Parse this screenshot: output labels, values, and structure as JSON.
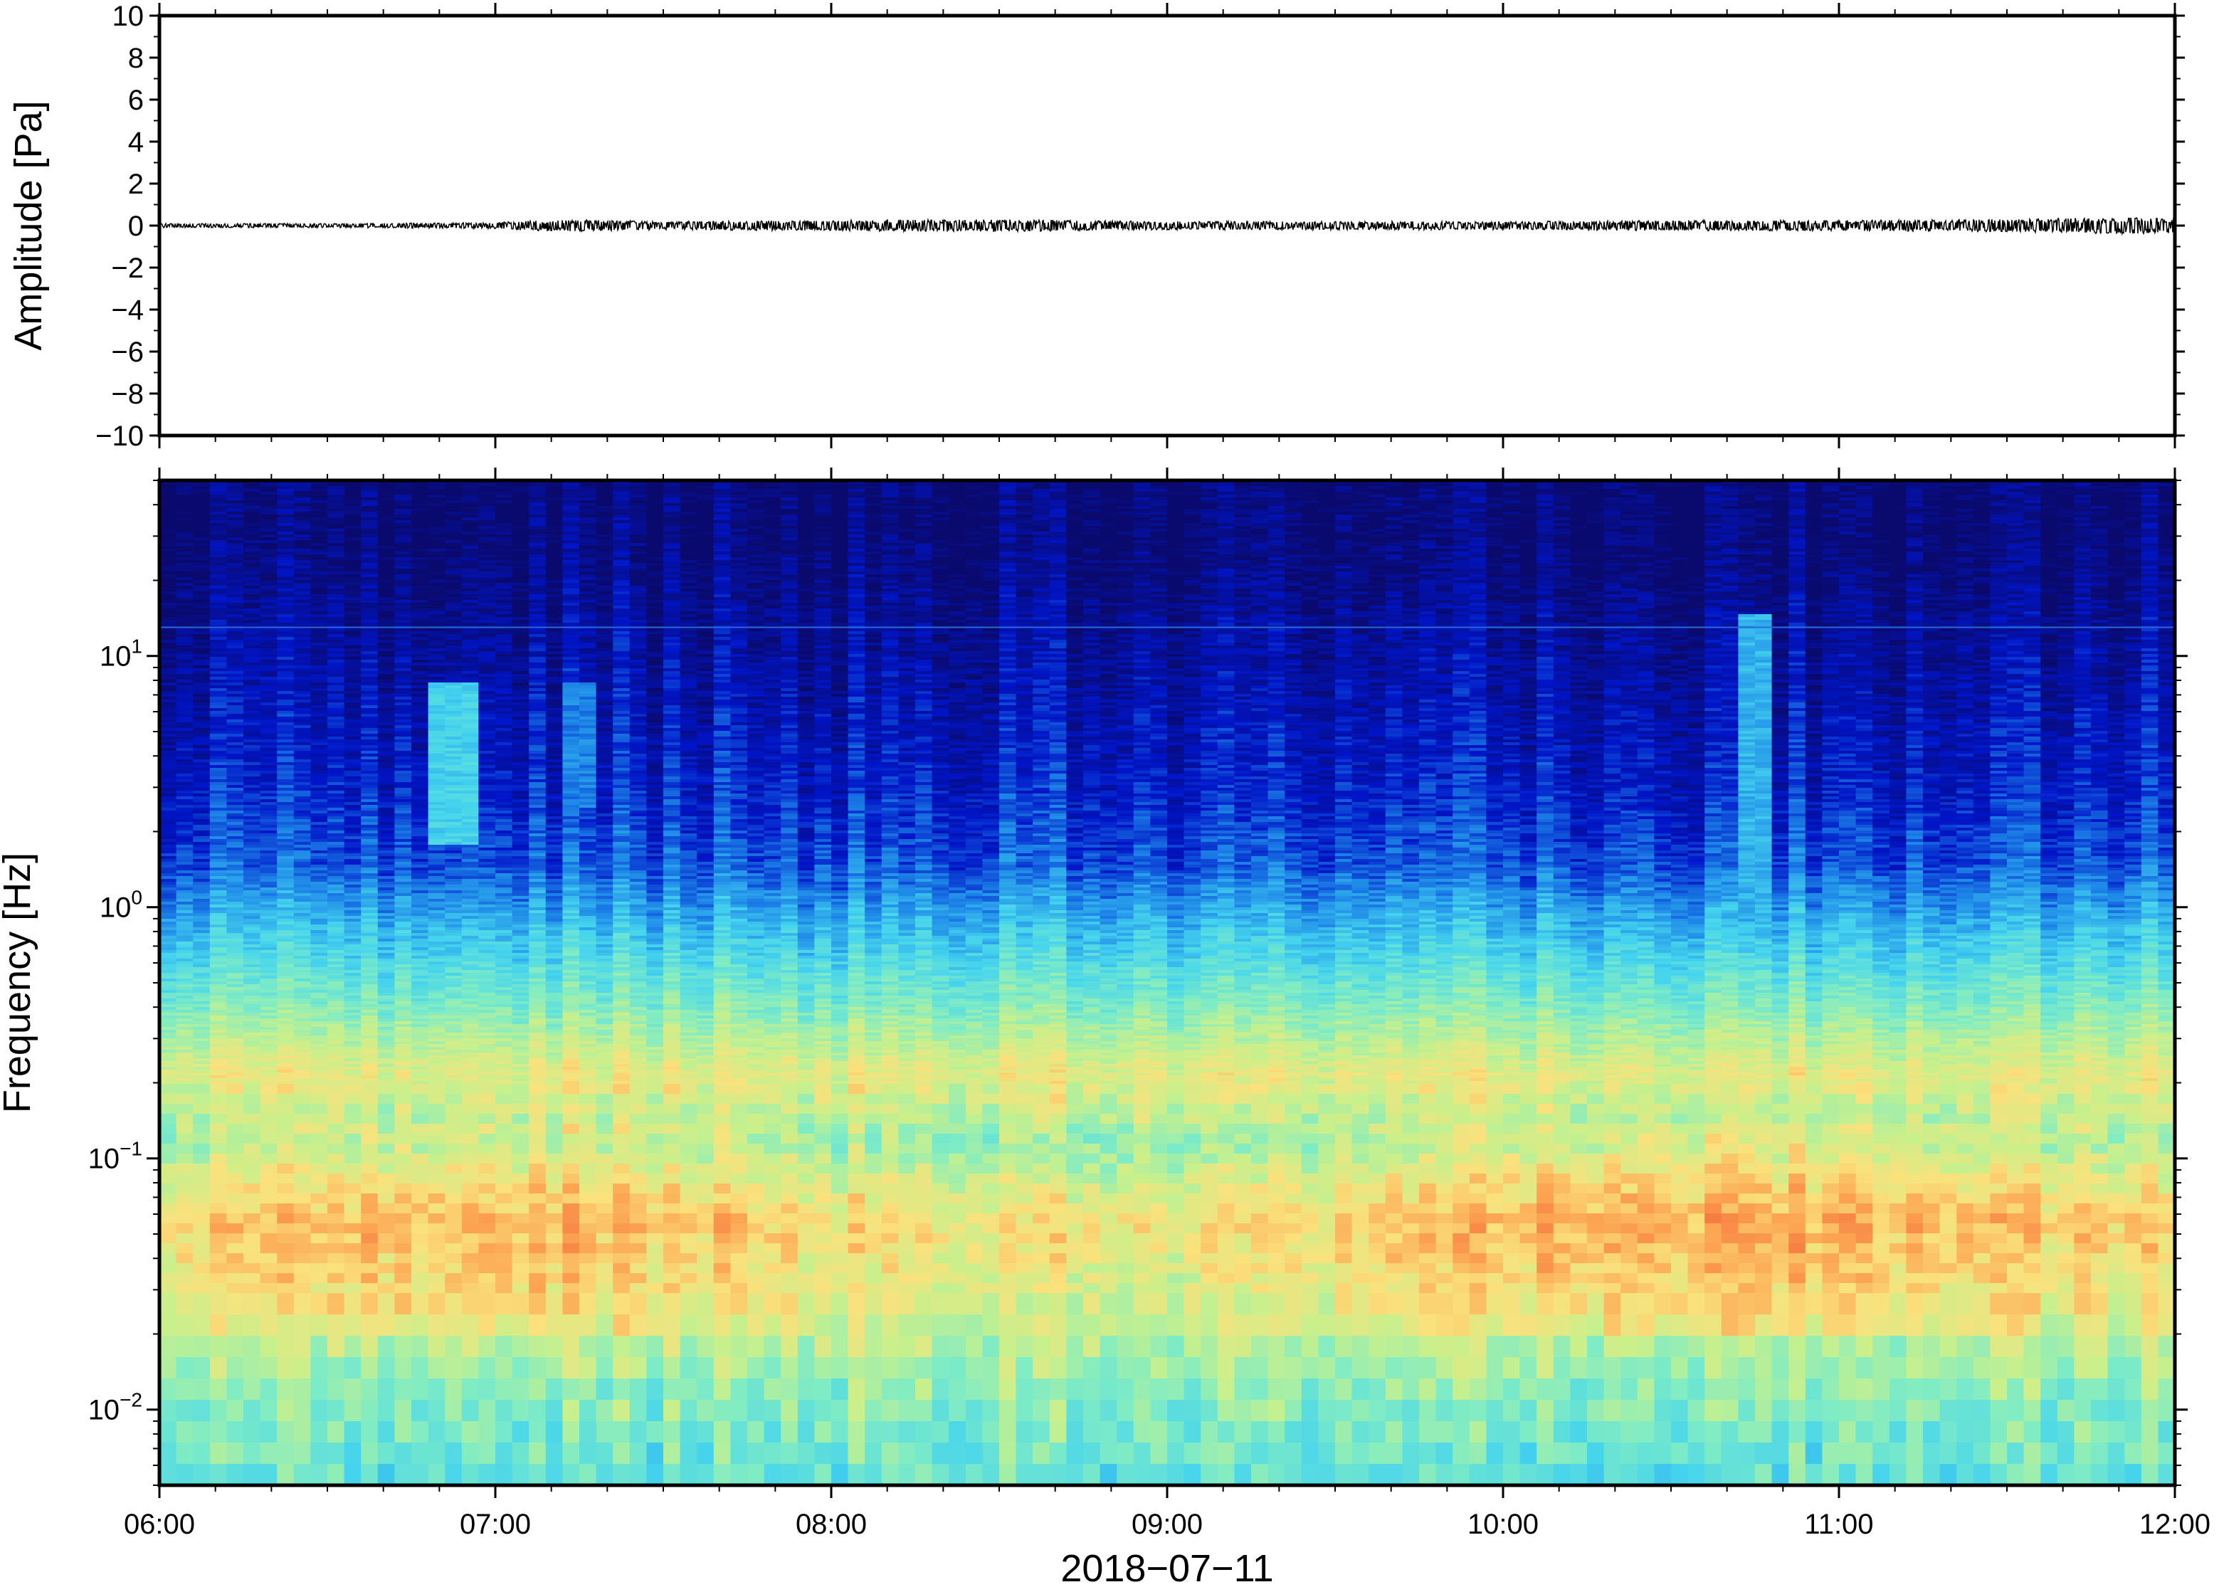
{
  "chart_data": [
    {
      "type": "line",
      "ylabel": "Amplitude [Pa]",
      "ylim": [
        -10,
        10
      ],
      "yticks": [
        10,
        8,
        6,
        4,
        2,
        0,
        -2,
        -4,
        -6,
        -8,
        -10
      ],
      "ytick_labels": [
        "10",
        "8",
        "6",
        "4",
        "2",
        "0",
        "−2",
        "−4",
        "−6",
        "−8",
        "−10"
      ],
      "xlim": [
        "06:00",
        "12:00"
      ],
      "series": [
        {
          "x": [
            "06:00",
            "06:30",
            "07:00",
            "07:12",
            "07:30",
            "08:00",
            "08:30",
            "09:00",
            "09:30",
            "10:00",
            "10:30",
            "11:00",
            "11:30",
            "11:50",
            "12:00"
          ],
          "y": [
            0.1,
            0.1,
            0.15,
            0.3,
            0.2,
            0.25,
            0.3,
            0.2,
            0.2,
            0.2,
            0.25,
            0.25,
            0.3,
            0.4,
            0.35
          ],
          "color": "#000000"
        }
      ]
    },
    {
      "type": "heatmap",
      "ylabel": "Frequency [Hz]",
      "yscale": "log",
      "ylim": [
        0.005,
        50
      ],
      "yticks": [
        10,
        1,
        0.1,
        0.01
      ],
      "ytick_labels": [
        {
          "base": "10",
          "exp": "1"
        },
        {
          "base": "10",
          "exp": "0"
        },
        {
          "base": "10",
          "exp": "−1"
        },
        {
          "base": "10",
          "exp": "−2"
        }
      ],
      "xlabel": "2018−07−11",
      "xlim": [
        "06:00",
        "12:00"
      ],
      "xticks": [
        "06:00",
        "07:00",
        "08:00",
        "09:00",
        "10:00",
        "11:00",
        "12:00"
      ],
      "colormap": "jet",
      "colors": [
        "#0a0a6e",
        "#0015c8",
        "#1e88e8",
        "#45d4ee",
        "#80ecc4",
        "#c8f08c",
        "#fae17c",
        "#fca552",
        "#f46e3c"
      ],
      "bands_hz": [
        {
          "f": 30,
          "level": 0.02
        },
        {
          "f": 10,
          "level": 0.08
        },
        {
          "f": 3,
          "level": 0.14
        },
        {
          "f": 1.5,
          "level": 0.2
        },
        {
          "f": 1,
          "level": 0.3
        },
        {
          "f": 0.6,
          "level": 0.42
        },
        {
          "f": 0.4,
          "level": 0.52
        },
        {
          "f": 0.22,
          "level": 0.7
        },
        {
          "f": 0.12,
          "level": 0.58
        },
        {
          "f": 0.06,
          "level": 0.78
        },
        {
          "f": 0.03,
          "level": 0.7
        },
        {
          "f": 0.015,
          "level": 0.55
        },
        {
          "f": 0.006,
          "level": 0.45
        }
      ],
      "features": [
        {
          "name": "narrow line",
          "f_hz": 13
        },
        {
          "name": "burst",
          "time": "06:53",
          "f_hz": [
            1.8,
            8
          ],
          "level": 0.38
        },
        {
          "name": "burst",
          "time": "07:15",
          "f_hz": [
            2.5,
            8
          ],
          "level": 0.25
        },
        {
          "name": "burst",
          "time": "10:45",
          "f_hz": [
            0.8,
            15
          ],
          "level": 0.32
        }
      ]
    }
  ]
}
